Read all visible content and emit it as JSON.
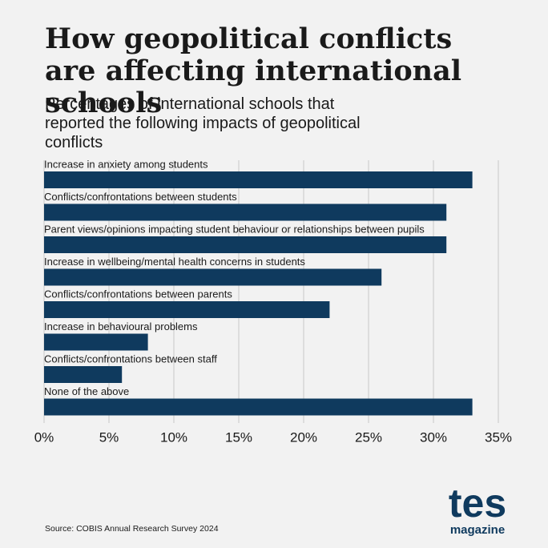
{
  "chart_data": {
    "type": "bar",
    "orientation": "horizontal",
    "title": "How geopolitical conflicts are affecting international schools",
    "subtitle": "Percentages of international schools that reported the following impacts of geopolitical conflicts",
    "categories": [
      "Increase in anxiety among students",
      "Conflicts/confrontations between students",
      "Parent views/opinions impacting student behaviour or relationships between pupils",
      "Increase in wellbeing/mental health concerns in students",
      "Conflicts/confrontations between parents",
      "Increase in behavioural problems",
      "Conflicts/confrontations between staff",
      "None of the above"
    ],
    "values": [
      33,
      31,
      31,
      26,
      22,
      8,
      6,
      33
    ],
    "color": "#0f3a5e",
    "xlim": [
      0,
      35
    ],
    "xticks": [
      {
        "value": 0,
        "label": "0%"
      },
      {
        "value": 5,
        "label": "5%"
      },
      {
        "value": 10,
        "label": "10%"
      },
      {
        "value": 15,
        "label": "15%"
      },
      {
        "value": 20,
        "label": "20%"
      },
      {
        "value": 25,
        "label": "25%"
      },
      {
        "value": 30,
        "label": "30%"
      },
      {
        "value": 35,
        "label": "35%"
      }
    ],
    "grid": true,
    "source": "Source: COBIS Annual Research Survey 2024"
  },
  "logo": {
    "brand": "tes",
    "sub": "magazine"
  }
}
